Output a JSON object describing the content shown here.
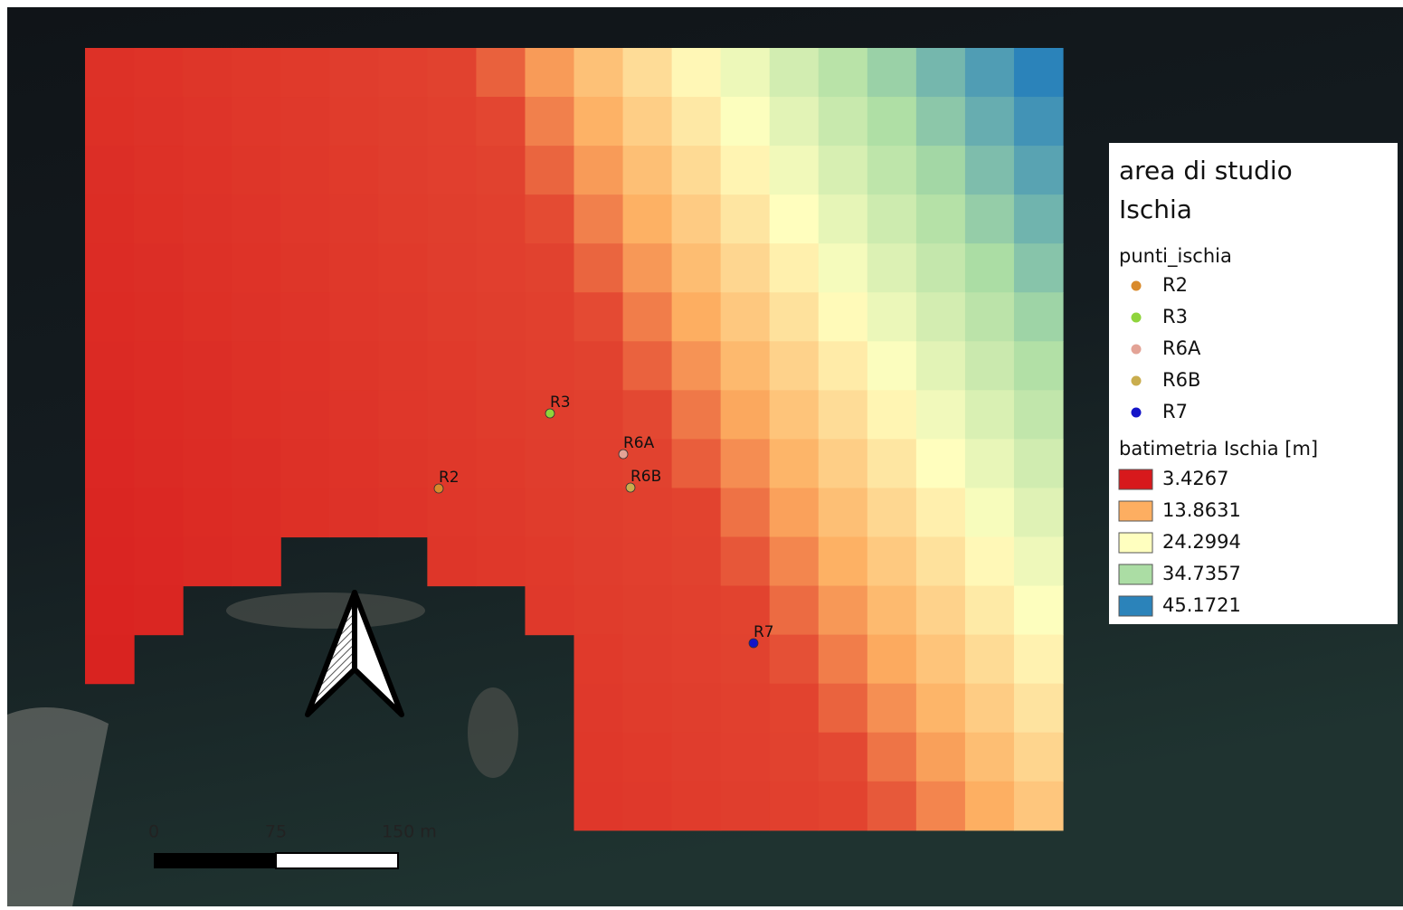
{
  "legend": {
    "title": "area di studio",
    "subtitle": "Ischia",
    "points_group": "punti_ischia",
    "points": [
      {
        "name": "R2",
        "color": "#d98a2b"
      },
      {
        "name": "R3",
        "color": "#8fd43c"
      },
      {
        "name": "R6A",
        "color": "#e3a396"
      },
      {
        "name": "R6B",
        "color": "#c9ad4e"
      },
      {
        "name": "R7",
        "color": "#1414c8"
      }
    ],
    "raster_group": "batimetria Ischia [m]",
    "classes": [
      {
        "label": "3.4267",
        "color": "#d7191c"
      },
      {
        "label": "13.8631",
        "color": "#fdae61"
      },
      {
        "label": "24.2994",
        "color": "#ffffbf"
      },
      {
        "label": "34.7357",
        "color": "#abdda4"
      },
      {
        "label": "45.1721",
        "color": "#2b83ba"
      }
    ]
  },
  "scale_bar": {
    "labels": [
      "0",
      "75",
      "150 m"
    ]
  }
}
